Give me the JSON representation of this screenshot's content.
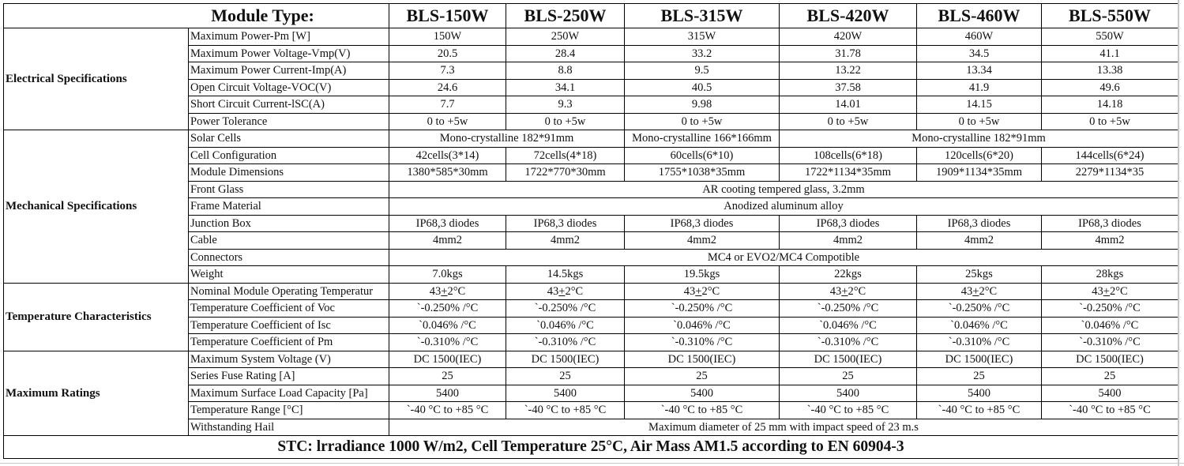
{
  "header": {
    "label": "Module Type:",
    "models": [
      "BLS-150W",
      "BLS-250W",
      "BLS-315W",
      "BLS-420W",
      "BLS-460W",
      "BLS-550W"
    ]
  },
  "sections": [
    {
      "name": "Electrical Specifications",
      "rows": [
        {
          "param": "Maximum Power-Pm [W]",
          "values": [
            "150W",
            "250W",
            "315W",
            "420W",
            "460W",
            "550W"
          ]
        },
        {
          "param": "Maximum Power Voltage-Vmp(V)",
          "values": [
            "20.5",
            "28.4",
            "33.2",
            "31.78",
            "34.5",
            "41.1"
          ]
        },
        {
          "param": "Maximum Power Current-Imp(A)",
          "values": [
            "7.3",
            "8.8",
            "9.5",
            "13.22",
            "13.34",
            "13.38"
          ]
        },
        {
          "param": "Open Circuit Voltage-VOC(V)",
          "values": [
            "24.6",
            "34.1",
            "40.5",
            "37.58",
            "41.9",
            "49.6"
          ]
        },
        {
          "param": "Short Circuit Current-lSC(A)",
          "values": [
            "7.7",
            "9.3",
            "9.98",
            "14.01",
            "14.15",
            "14.18"
          ]
        },
        {
          "param": "Power Tolerance",
          "values": [
            "0 to +5w",
            "0 to +5w",
            "0 to +5w",
            "0 to +5w",
            "0 to +5w",
            "0 to +5w"
          ]
        }
      ]
    },
    {
      "name": "Mechanical Specifications",
      "rows": [
        {
          "param": "Solar Cells",
          "values": [
            "Mono-crystalline 182*91mm",
            "Mono-crystalline 166*166mm",
            "Mono-crystalline 182*91mm"
          ]
        },
        {
          "param": "Cell Configuration",
          "values": [
            "42cells(3*14)",
            "72cells(4*18)",
            "60cells(6*10)",
            "108cells(6*18)",
            "120cells(6*20)",
            "144cells(6*24)"
          ]
        },
        {
          "param": "Module Dimensions",
          "values": [
            "1380*585*30mm",
            "1722*770*30mm",
            "1755*1038*35mm",
            "1722*1134*35mm",
            "1909*1134*35mm",
            "2279*1134*35"
          ]
        },
        {
          "param": "Front Glass",
          "values": [
            "AR cooting tempered glass, 3.2mm"
          ]
        },
        {
          "param": "Frame Material",
          "values": [
            "Anodized aluminum alloy"
          ]
        },
        {
          "param": "Junction Box",
          "values": [
            "IP68,3 diodes",
            "IP68,3 diodes",
            "IP68,3 diodes",
            "IP68,3 diodes",
            "IP68,3 diodes",
            "IP68,3 diodes"
          ]
        },
        {
          "param": "Cable",
          "values": [
            "4mm2",
            "4mm2",
            "4mm2",
            "4mm2",
            "4mm2",
            "4mm2"
          ]
        },
        {
          "param": "Connectors",
          "values": [
            "MC4 or EVO2/MC4 Compotible"
          ]
        },
        {
          "param": "Weight",
          "values": [
            "7.0kgs",
            "14.5kgs",
            "19.5kgs",
            "22kgs",
            "25kgs",
            "28kgs"
          ]
        }
      ]
    },
    {
      "name": "Temperature Characteristics",
      "rows": [
        {
          "param": "Nominal Module Operating Temperatur",
          "values": [
            "43+2°C",
            "43+2°C",
            "43+2°C",
            "43+2°C",
            "43+2°C",
            "43+2°C"
          ]
        },
        {
          "param": "Temperature Coefficient of Voc",
          "values": [
            "`-0.250% /°C",
            "`-0.250% /°C",
            "`-0.250% /°C",
            "`-0.250% /°C",
            "`-0.250% /°C",
            "`-0.250% /°C"
          ]
        },
        {
          "param": "Temperature Coefficient of Isc",
          "values": [
            "`0.046% /°C",
            "`0.046% /°C",
            "`0.046% /°C",
            "`0.046% /°C",
            "`0.046% /°C",
            "`0.046% /°C"
          ]
        },
        {
          "param": "Temperature Coefficient of Pm",
          "values": [
            "`-0.310% /°C",
            "`-0.310% /°C",
            "`-0.310% /°C",
            "`-0.310% /°C",
            "`-0.310% /°C",
            "`-0.310% /°C"
          ]
        }
      ]
    },
    {
      "name": "Maximum Ratings",
      "rows": [
        {
          "param": "Maximum System Voltage (V)",
          "values": [
            "DC 1500(IEC)",
            "DC 1500(IEC)",
            "DC 1500(IEC)",
            "DC 1500(IEC)",
            "DC 1500(IEC)",
            "DC 1500(IEC)"
          ]
        },
        {
          "param": "Series Fuse Rating [A]",
          "values": [
            "25",
            "25",
            "25",
            "25",
            "25",
            "25"
          ]
        },
        {
          "param": "Maximum Surface Load Capacity [Pa]",
          "values": [
            "5400",
            "5400",
            "5400",
            "5400",
            "5400",
            "5400"
          ]
        },
        {
          "param": "Temperature Range [°C]",
          "values": [
            "`-40 °C to +85 °C",
            "`-40 °C to +85 °C",
            "`-40 °C to +85 °C",
            "`-40 °C to +85 °C",
            "`-40 °C to +85 °C",
            "`-40 °C to +85 °C"
          ]
        },
        {
          "param": "Withstanding Hail",
          "values": [
            "Maximum diameter of 25 mm with impact speed of 23 m.s"
          ]
        }
      ]
    }
  ],
  "footer": {
    "stc": "STC:  lrradiance 1000 W/m2,  Cell Temperature 25°C,  Air Mass AM1.5 according to EN 60904-3"
  }
}
